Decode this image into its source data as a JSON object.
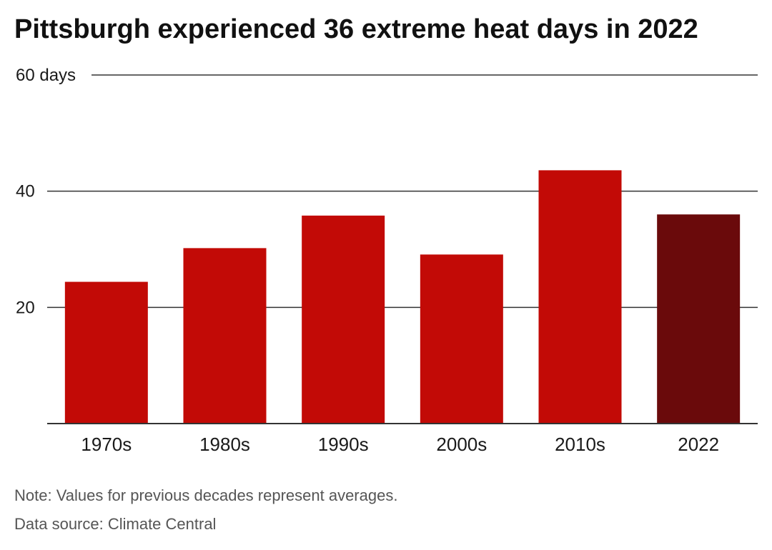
{
  "title": "Pittsburgh experienced 36 extreme heat days in 2022",
  "colors": {
    "bar": "#c20a06",
    "highlight": "#6a0a0b",
    "grid": "#333333",
    "axis_text": "#1a1a1a"
  },
  "chart_data": {
    "type": "bar",
    "title": "Pittsburgh experienced 36 extreme heat days in 2022",
    "categories": [
      "1970s",
      "1980s",
      "1990s",
      "2000s",
      "2010s",
      "2022"
    ],
    "values": [
      24.4,
      30.2,
      35.8,
      29.1,
      43.6,
      36
    ],
    "highlight_index": 5,
    "ylim": [
      0,
      60
    ],
    "yticks": [
      {
        "value": 20,
        "label": "20"
      },
      {
        "value": 40,
        "label": "40"
      },
      {
        "value": 60,
        "label": "60 days"
      }
    ],
    "grid": true,
    "xlabel": "",
    "ylabel": ""
  },
  "footer": {
    "note": "Note: Values for previous decades represent averages.",
    "source": "Data source: Climate Central"
  }
}
